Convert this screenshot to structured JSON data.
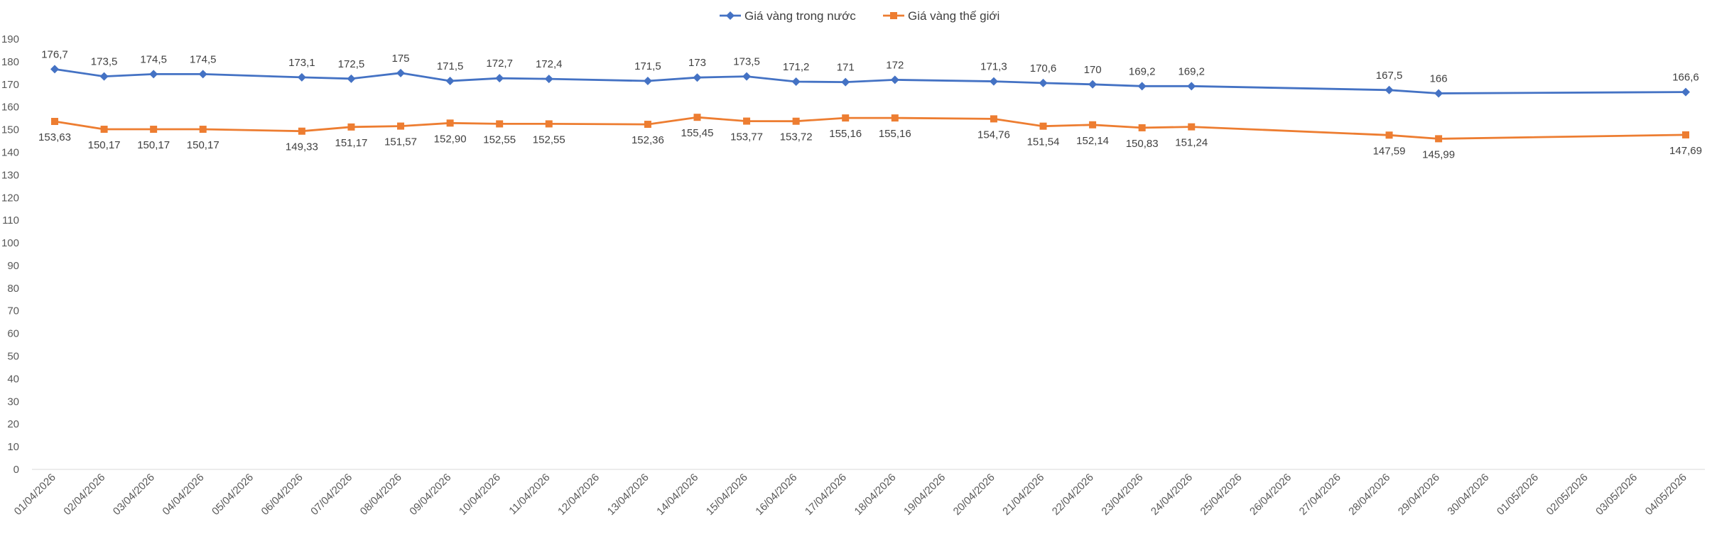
{
  "chart_data": {
    "type": "line",
    "title": "",
    "xlabel": "",
    "ylabel": "",
    "ylim": [
      0,
      190
    ],
    "yticks": [
      0,
      10,
      20,
      30,
      40,
      50,
      60,
      70,
      80,
      90,
      100,
      110,
      120,
      130,
      140,
      150,
      160,
      170,
      180,
      190
    ],
    "grid": false,
    "legend_position": "top-center",
    "categories": [
      "01/04/2026",
      "02/04/2026",
      "03/04/2026",
      "04/04/2026",
      "05/04/2026",
      "06/04/2026",
      "07/04/2026",
      "08/04/2026",
      "09/04/2026",
      "10/04/2026",
      "11/04/2026",
      "12/04/2026",
      "13/04/2026",
      "14/04/2026",
      "15/04/2026",
      "16/04/2026",
      "17/04/2026",
      "18/04/2026",
      "19/04/2026",
      "20/04/2026",
      "21/04/2026",
      "22/04/2026",
      "23/04/2026",
      "24/04/2026",
      "25/04/2026",
      "26/04/2026",
      "27/04/2026",
      "28/04/2026",
      "29/04/2026",
      "30/04/2026",
      "01/05/2026",
      "02/05/2026",
      "03/05/2026",
      "04/05/2026"
    ],
    "series": [
      {
        "name": "Giá vàng trong nước",
        "color": "#4472C4",
        "marker": "diamond",
        "label_position": "above",
        "values": [
          176.7,
          173.5,
          174.5,
          174.5,
          null,
          173.1,
          172.5,
          175,
          171.5,
          172.7,
          172.4,
          null,
          171.5,
          173,
          173.5,
          171.2,
          171,
          172,
          null,
          171.3,
          170.6,
          170,
          169.2,
          169.2,
          null,
          null,
          null,
          167.5,
          166,
          null,
          null,
          null,
          null,
          166.6
        ],
        "labels": [
          "176,7",
          "173,5",
          "174,5",
          "174,5",
          null,
          "173,1",
          "172,5",
          "175",
          "171,5",
          "172,7",
          "172,4",
          null,
          "171,5",
          "173",
          "173,5",
          "171,2",
          "171",
          "172",
          null,
          "171,3",
          "170,6",
          "170",
          "169,2",
          "169,2",
          null,
          null,
          null,
          "167,5",
          "166",
          null,
          null,
          null,
          null,
          "166,6"
        ]
      },
      {
        "name": "Giá vàng thế giới",
        "color": "#ED7D31",
        "marker": "square",
        "label_position": "below",
        "values": [
          153.63,
          150.17,
          150.17,
          150.17,
          null,
          149.33,
          151.17,
          151.57,
          152.9,
          152.55,
          152.55,
          null,
          152.36,
          155.45,
          153.77,
          153.72,
          155.16,
          155.16,
          null,
          154.76,
          151.54,
          152.14,
          150.83,
          151.24,
          null,
          null,
          null,
          147.59,
          145.99,
          null,
          null,
          null,
          null,
          147.69
        ],
        "labels": [
          "153,63",
          "150,17",
          "150,17",
          "150,17",
          null,
          "149,33",
          "151,17",
          "151,57",
          "152,90",
          "152,55",
          "152,55",
          null,
          "152,36",
          "155,45",
          "153,77",
          "153,72",
          "155,16",
          "155,16",
          null,
          "154,76",
          "151,54",
          "152,14",
          "150,83",
          "151,24",
          null,
          null,
          null,
          "147,59",
          "145,99",
          null,
          null,
          null,
          null,
          "147,69"
        ]
      }
    ]
  }
}
